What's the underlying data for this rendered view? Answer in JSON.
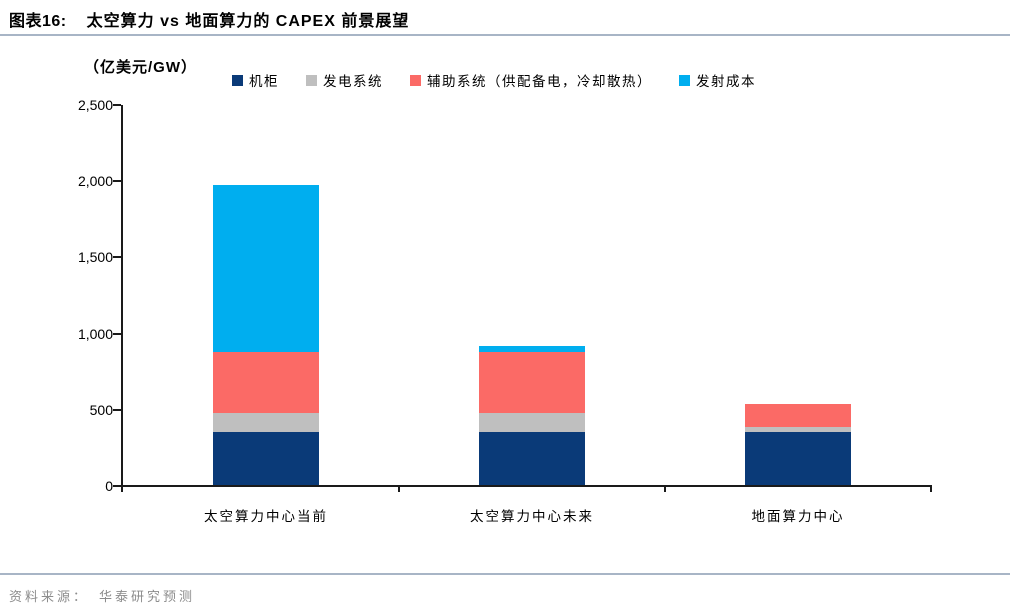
{
  "header": {
    "tag": "图表16:",
    "title": "太空算力 vs 地面算力的 CAPEX 前景展望"
  },
  "footer": {
    "source_label": "资料来源：",
    "source_text": "华泰研究预测"
  },
  "colors": {
    "cabinet": "#0a3a78",
    "power_system": "#bfbfbf",
    "auxiliary_system": "#fb6a66",
    "launch_cost": "#00aeef",
    "axis": "#1a1a1a",
    "rule_line": "#a8b5c6",
    "footer_text": "#8c8c8c"
  },
  "chart_data": {
    "type": "bar",
    "stacked": true,
    "title": "太空算力 vs 地面算力的 CAPEX 前景展望",
    "unit_label": "（亿美元/GW）",
    "categories": [
      "太空算力中心当前",
      "太空算力中心未来",
      "地面算力中心"
    ],
    "series": [
      {
        "name": "机柜",
        "color": "#0a3a78",
        "values": [
          350,
          350,
          350
        ]
      },
      {
        "name": "发电系统",
        "color": "#bfbfbf",
        "values": [
          120,
          120,
          30
        ]
      },
      {
        "name": "辅助系统（供配备电，冷却散热）",
        "color": "#fb6a66",
        "values": [
          400,
          400,
          150
        ]
      },
      {
        "name": "发射成本",
        "color": "#00aeef",
        "values": [
          1100,
          40,
          0
        ]
      }
    ],
    "totals": [
      1970,
      910,
      530
    ],
    "ylim": [
      0,
      2500
    ],
    "y_tick_step": 500,
    "y_ticks": [
      "0",
      "500",
      "1,000",
      "1,500",
      "2,000",
      "2,500"
    ],
    "grid": false,
    "legend_position": "top"
  }
}
